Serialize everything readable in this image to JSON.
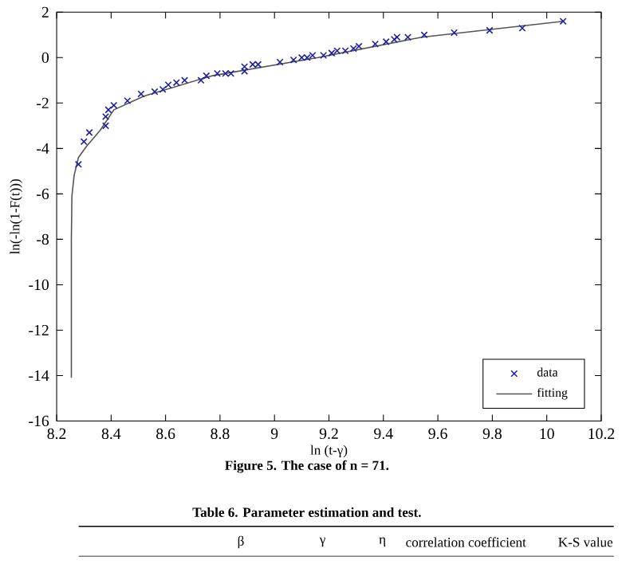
{
  "chart_data": {
    "type": "scatter",
    "xlabel": "ln (t-γ)",
    "ylabel": "ln(-ln(1-F(t)))",
    "xlim": [
      8.2,
      10.2
    ],
    "ylim": [
      -16,
      2
    ],
    "xticks": [
      8.2,
      8.4,
      8.6,
      8.8,
      9,
      9.2,
      9.4,
      9.6,
      9.8,
      10,
      10.2
    ],
    "yticks": [
      -16,
      -14,
      -12,
      -10,
      -8,
      -6,
      -4,
      -2,
      0,
      2
    ],
    "legend": "bottom right",
    "series": [
      {
        "name": "data",
        "color": "#1f1fa0",
        "marker": "cross",
        "x": [
          8.28,
          8.3,
          8.32,
          8.38,
          8.38,
          8.39,
          8.41,
          8.46,
          8.51,
          8.56,
          8.59,
          8.61,
          8.64,
          8.67,
          8.73,
          8.75,
          8.79,
          8.82,
          8.84,
          8.89,
          8.89,
          8.92,
          8.94,
          9.02,
          9.07,
          9.1,
          9.12,
          9.14,
          9.18,
          9.21,
          9.23,
          9.26,
          9.29,
          9.31,
          9.37,
          9.41,
          9.44,
          9.45,
          9.49,
          9.55,
          9.66,
          9.79,
          9.91,
          10.06
        ],
        "values": [
          -4.7,
          -3.7,
          -3.3,
          -3.0,
          -2.6,
          -2.3,
          -2.1,
          -1.9,
          -1.6,
          -1.5,
          -1.4,
          -1.2,
          -1.1,
          -1.0,
          -1.0,
          -0.8,
          -0.7,
          -0.7,
          -0.7,
          -0.6,
          -0.4,
          -0.3,
          -0.3,
          -0.2,
          -0.1,
          0.0,
          0.0,
          0.1,
          0.1,
          0.2,
          0.3,
          0.3,
          0.4,
          0.5,
          0.6,
          0.7,
          0.8,
          0.9,
          0.9,
          1.0,
          1.1,
          1.2,
          1.3,
          1.6
        ]
      },
      {
        "name": "fitting",
        "type": "line",
        "color": "#555555",
        "marker": "none",
        "x": [
          8.254,
          8.254,
          8.256,
          8.264,
          8.28,
          8.31,
          8.36,
          8.41,
          8.52,
          8.77,
          9.16,
          9.54,
          10.06
        ],
        "values": [
          -14.1,
          -8.0,
          -6.1,
          -5.2,
          -4.4,
          -3.9,
          -3.2,
          -2.3,
          -1.7,
          -0.8,
          0.0,
          0.9,
          1.6
        ]
      }
    ],
    "annotations": [
      "Figure 5. The case of n = 71.",
      "Table 6. Parameter estimation and test.",
      "β",
      "γ",
      "η",
      "correlation coefficient",
      "K-S value"
    ]
  }
}
